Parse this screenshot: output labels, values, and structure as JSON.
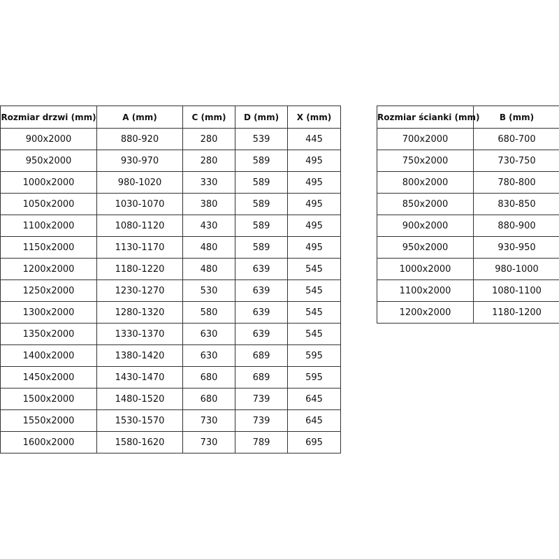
{
  "doors_table": {
    "headers": [
      "Rozmiar drzwi (mm)",
      "A (mm)",
      "C (mm)",
      "D (mm)",
      "X (mm)"
    ],
    "rows": [
      [
        "900x2000",
        "880-920",
        "280",
        "539",
        "445"
      ],
      [
        "950x2000",
        "930-970",
        "280",
        "589",
        "495"
      ],
      [
        "1000x2000",
        "980-1020",
        "330",
        "589",
        "495"
      ],
      [
        "1050x2000",
        "1030-1070",
        "380",
        "589",
        "495"
      ],
      [
        "1100x2000",
        "1080-1120",
        "430",
        "589",
        "495"
      ],
      [
        "1150x2000",
        "1130-1170",
        "480",
        "589",
        "495"
      ],
      [
        "1200x2000",
        "1180-1220",
        "480",
        "639",
        "545"
      ],
      [
        "1250x2000",
        "1230-1270",
        "530",
        "639",
        "545"
      ],
      [
        "1300x2000",
        "1280-1320",
        "580",
        "639",
        "545"
      ],
      [
        "1350x2000",
        "1330-1370",
        "630",
        "639",
        "545"
      ],
      [
        "1400x2000",
        "1380-1420",
        "630",
        "689",
        "595"
      ],
      [
        "1450x2000",
        "1430-1470",
        "680",
        "689",
        "595"
      ],
      [
        "1500x2000",
        "1480-1520",
        "680",
        "739",
        "645"
      ],
      [
        "1550x2000",
        "1530-1570",
        "730",
        "739",
        "645"
      ],
      [
        "1600x2000",
        "1580-1620",
        "730",
        "789",
        "695"
      ]
    ]
  },
  "walls_table": {
    "headers": [
      "Rozmiar ścianki (mm)",
      "B (mm)"
    ],
    "rows": [
      [
        "700x2000",
        "680-700"
      ],
      [
        "750x2000",
        "730-750"
      ],
      [
        "800x2000",
        "780-800"
      ],
      [
        "850x2000",
        "830-850"
      ],
      [
        "900x2000",
        "880-900"
      ],
      [
        "950x2000",
        "930-950"
      ],
      [
        "1000x2000",
        "980-1000"
      ],
      [
        "1100x2000",
        "1080-1100"
      ],
      [
        "1200x2000",
        "1180-1200"
      ]
    ]
  }
}
